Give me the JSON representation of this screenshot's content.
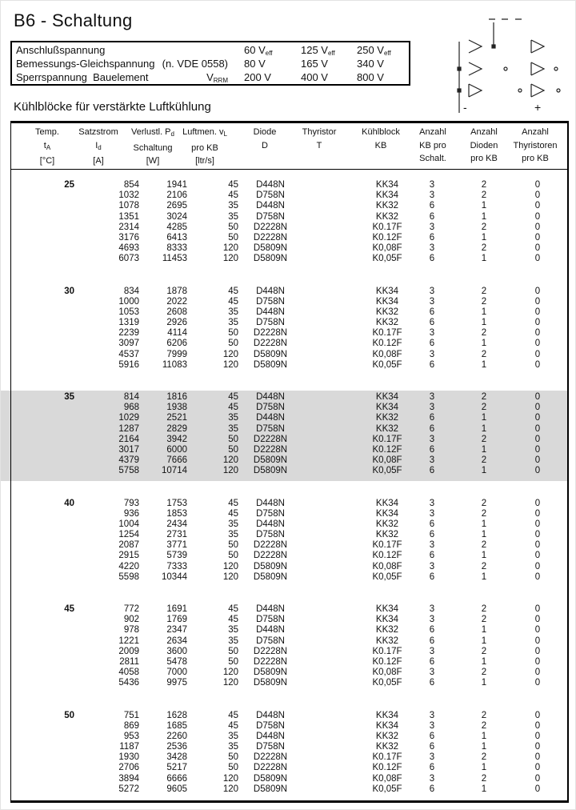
{
  "page": {
    "title": "B6 - Schaltung",
    "section_heading": "Kühlblöcke für verstärkte Luftkühlung"
  },
  "diagram": {
    "minus_label": "-",
    "plus_label": "+"
  },
  "spec_box": {
    "rows": [
      {
        "label": "Anschlußspannung",
        "note": "",
        "note_sub": "",
        "v1": "60 V",
        "v1_sub": "eff",
        "v2": "125 V",
        "v2_sub": "eff",
        "v3": "250 V",
        "v3_sub": "eff"
      },
      {
        "label": "Bemessungs-Gleichspannung",
        "note": "(n. VDE 0558)",
        "note_sub": "",
        "v1": "80 V",
        "v1_sub": "",
        "v2": "165 V",
        "v2_sub": "",
        "v3": "340 V",
        "v3_sub": ""
      },
      {
        "label": "Sperrspannung  Bauelement",
        "note": "V",
        "note_sub": "RRM",
        "v1": "200 V",
        "v1_sub": "",
        "v2": "400 V",
        "v2_sub": "",
        "v3": "800 V",
        "v3_sub": ""
      }
    ]
  },
  "table": {
    "header": {
      "temp": {
        "l1": "Temp.",
        "l1s": "",
        "l2": "t",
        "l2s": "A",
        "l3": "[°C]"
      },
      "satz": {
        "l1": "Satzstrom",
        "l1s": "",
        "l2": "I",
        "l2s": "d",
        "l3": "[A]"
      },
      "verl": {
        "l1": "Verlustl. P",
        "l1s": "d",
        "l2": "Schaltung",
        "l2s": "",
        "l3": "[W]"
      },
      "luft": {
        "l1": "Luftmen. v",
        "l1s": "L",
        "l2": "pro KB",
        "l2s": "",
        "l3": "[ltr/s]"
      },
      "diode": {
        "l1": "Diode",
        "l1s": "",
        "l2": "D",
        "l2s": "",
        "l3": ""
      },
      "thyr": {
        "l1": "Thyristor",
        "l1s": "",
        "l2": "T",
        "l2s": "",
        "l3": ""
      },
      "kb": {
        "l1": "Kühlblock",
        "l1s": "",
        "l2": "KB",
        "l2s": "",
        "l3": ""
      },
      "n1": {
        "l1": "Anzahl",
        "l1s": "",
        "l2": "KB pro",
        "l2s": "",
        "l3": "Schalt."
      },
      "n2": {
        "l1": "Anzahl",
        "l1s": "",
        "l2": "Dioden",
        "l2s": "",
        "l3": "pro KB"
      },
      "n3": {
        "l1": "Anzahl",
        "l1s": "",
        "l2": "Thyristoren",
        "l2s": "",
        "l3": "pro KB"
      }
    },
    "groups": [
      {
        "temp": "25",
        "highlight": false,
        "rows": [
          [
            "854",
            "1941",
            "45",
            "D448N",
            "KK34",
            "3",
            "2",
            "0"
          ],
          [
            "1032",
            "2106",
            "45",
            "D758N",
            "KK34",
            "3",
            "2",
            "0"
          ],
          [
            "1078",
            "2695",
            "35",
            "D448N",
            "KK32",
            "6",
            "1",
            "0"
          ],
          [
            "1351",
            "3024",
            "35",
            "D758N",
            "KK32",
            "6",
            "1",
            "0"
          ],
          [
            "2314",
            "4285",
            "50",
            "D2228N",
            "K0.17F",
            "3",
            "2",
            "0"
          ],
          [
            "3176",
            "6413",
            "50",
            "D2228N",
            "K0.12F",
            "6",
            "1",
            "0"
          ],
          [
            "4693",
            "8333",
            "120",
            "D5809N",
            "K0,08F",
            "3",
            "2",
            "0"
          ],
          [
            "6073",
            "11453",
            "120",
            "D5809N",
            "K0,05F",
            "6",
            "1",
            "0"
          ]
        ]
      },
      {
        "temp": "30",
        "highlight": false,
        "rows": [
          [
            "834",
            "1878",
            "45",
            "D448N",
            "KK34",
            "3",
            "2",
            "0"
          ],
          [
            "1000",
            "2022",
            "45",
            "D758N",
            "KK34",
            "3",
            "2",
            "0"
          ],
          [
            "1053",
            "2608",
            "35",
            "D448N",
            "KK32",
            "6",
            "1",
            "0"
          ],
          [
            "1319",
            "2926",
            "35",
            "D758N",
            "KK32",
            "6",
            "1",
            "0"
          ],
          [
            "2239",
            "4114",
            "50",
            "D2228N",
            "K0.17F",
            "3",
            "2",
            "0"
          ],
          [
            "3097",
            "6206",
            "50",
            "D2228N",
            "K0.12F",
            "6",
            "1",
            "0"
          ],
          [
            "4537",
            "7999",
            "120",
            "D5809N",
            "K0,08F",
            "3",
            "2",
            "0"
          ],
          [
            "5916",
            "11083",
            "120",
            "D5809N",
            "K0,05F",
            "6",
            "1",
            "0"
          ]
        ]
      },
      {
        "temp": "35",
        "highlight": true,
        "rows": [
          [
            "814",
            "1816",
            "45",
            "D448N",
            "KK34",
            "3",
            "2",
            "0"
          ],
          [
            "968",
            "1938",
            "45",
            "D758N",
            "KK34",
            "3",
            "2",
            "0"
          ],
          [
            "1029",
            "2521",
            "35",
            "D448N",
            "KK32",
            "6",
            "1",
            "0"
          ],
          [
            "1287",
            "2829",
            "35",
            "D758N",
            "KK32",
            "6",
            "1",
            "0"
          ],
          [
            "2164",
            "3942",
            "50",
            "D2228N",
            "K0.17F",
            "3",
            "2",
            "0"
          ],
          [
            "3017",
            "6000",
            "50",
            "D2228N",
            "K0.12F",
            "6",
            "1",
            "0"
          ],
          [
            "4379",
            "7666",
            "120",
            "D5809N",
            "K0,08F",
            "3",
            "2",
            "0"
          ],
          [
            "5758",
            "10714",
            "120",
            "D5809N",
            "K0,05F",
            "6",
            "1",
            "0"
          ]
        ]
      },
      {
        "temp": "40",
        "highlight": false,
        "rows": [
          [
            "793",
            "1753",
            "45",
            "D448N",
            "KK34",
            "3",
            "2",
            "0"
          ],
          [
            "936",
            "1853",
            "45",
            "D758N",
            "KK34",
            "3",
            "2",
            "0"
          ],
          [
            "1004",
            "2434",
            "35",
            "D448N",
            "KK32",
            "6",
            "1",
            "0"
          ],
          [
            "1254",
            "2731",
            "35",
            "D758N",
            "KK32",
            "6",
            "1",
            "0"
          ],
          [
            "2087",
            "3771",
            "50",
            "D2228N",
            "K0.17F",
            "3",
            "2",
            "0"
          ],
          [
            "2915",
            "5739",
            "50",
            "D2228N",
            "K0.12F",
            "6",
            "1",
            "0"
          ],
          [
            "4220",
            "7333",
            "120",
            "D5809N",
            "K0,08F",
            "3",
            "2",
            "0"
          ],
          [
            "5598",
            "10344",
            "120",
            "D5809N",
            "K0,05F",
            "6",
            "1",
            "0"
          ]
        ]
      },
      {
        "temp": "45",
        "highlight": false,
        "rows": [
          [
            "772",
            "1691",
            "45",
            "D448N",
            "KK34",
            "3",
            "2",
            "0"
          ],
          [
            "902",
            "1769",
            "45",
            "D758N",
            "KK34",
            "3",
            "2",
            "0"
          ],
          [
            "978",
            "2347",
            "35",
            "D448N",
            "KK32",
            "6",
            "1",
            "0"
          ],
          [
            "1221",
            "2634",
            "35",
            "D758N",
            "KK32",
            "6",
            "1",
            "0"
          ],
          [
            "2009",
            "3600",
            "50",
            "D2228N",
            "K0.17F",
            "3",
            "2",
            "0"
          ],
          [
            "2811",
            "5478",
            "50",
            "D2228N",
            "K0.12F",
            "6",
            "1",
            "0"
          ],
          [
            "4058",
            "7000",
            "120",
            "D5809N",
            "K0,08F",
            "3",
            "2",
            "0"
          ],
          [
            "5436",
            "9975",
            "120",
            "D5809N",
            "K0,05F",
            "6",
            "1",
            "0"
          ]
        ]
      },
      {
        "temp": "50",
        "highlight": false,
        "rows": [
          [
            "751",
            "1628",
            "45",
            "D448N",
            "KK34",
            "3",
            "2",
            "0"
          ],
          [
            "869",
            "1685",
            "45",
            "D758N",
            "KK34",
            "3",
            "2",
            "0"
          ],
          [
            "953",
            "2260",
            "35",
            "D448N",
            "KK32",
            "6",
            "1",
            "0"
          ],
          [
            "1187",
            "2536",
            "35",
            "D758N",
            "KK32",
            "6",
            "1",
            "0"
          ],
          [
            "1930",
            "3428",
            "50",
            "D2228N",
            "K0.17F",
            "3",
            "2",
            "0"
          ],
          [
            "2706",
            "5217",
            "50",
            "D2228N",
            "K0.12F",
            "6",
            "1",
            "0"
          ],
          [
            "3894",
            "6666",
            "120",
            "D5809N",
            "K0,08F",
            "3",
            "2",
            "0"
          ],
          [
            "5272",
            "9605",
            "120",
            "D5809N",
            "K0,05F",
            "6",
            "1",
            "0"
          ]
        ]
      }
    ]
  },
  "colors": {
    "highlight_band": "#d9d9d9",
    "ink": "#111111",
    "paper": "#ffffff"
  }
}
